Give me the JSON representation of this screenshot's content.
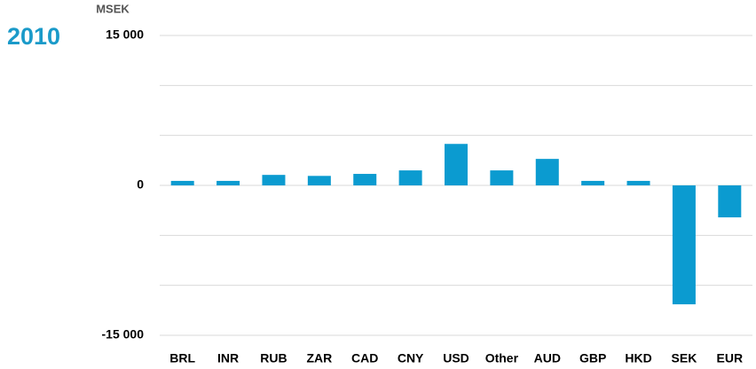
{
  "chart_data": {
    "type": "bar",
    "title": "2010",
    "y_axis_label": "MSEK",
    "categories": [
      "BRL",
      "INR",
      "RUB",
      "ZAR",
      "CAD",
      "CNY",
      "USD",
      "Other",
      "AUD",
      "GBP",
      "HKD",
      "SEK",
      "EUR"
    ],
    "values": [
      450,
      450,
      1050,
      950,
      1150,
      1500,
      4150,
      1500,
      2650,
      450,
      450,
      -11900,
      -3200
    ],
    "color": "#0b9bd0",
    "ylim": [
      -15000,
      15000
    ],
    "yticks": [
      {
        "value": -15000,
        "label": "-15 000"
      },
      0,
      {
        "value": 15000,
        "label": "15 000"
      }
    ],
    "ygrid": [
      -15000,
      -10000,
      -5000,
      0,
      5000,
      10000,
      15000
    ],
    "grid": true
  }
}
